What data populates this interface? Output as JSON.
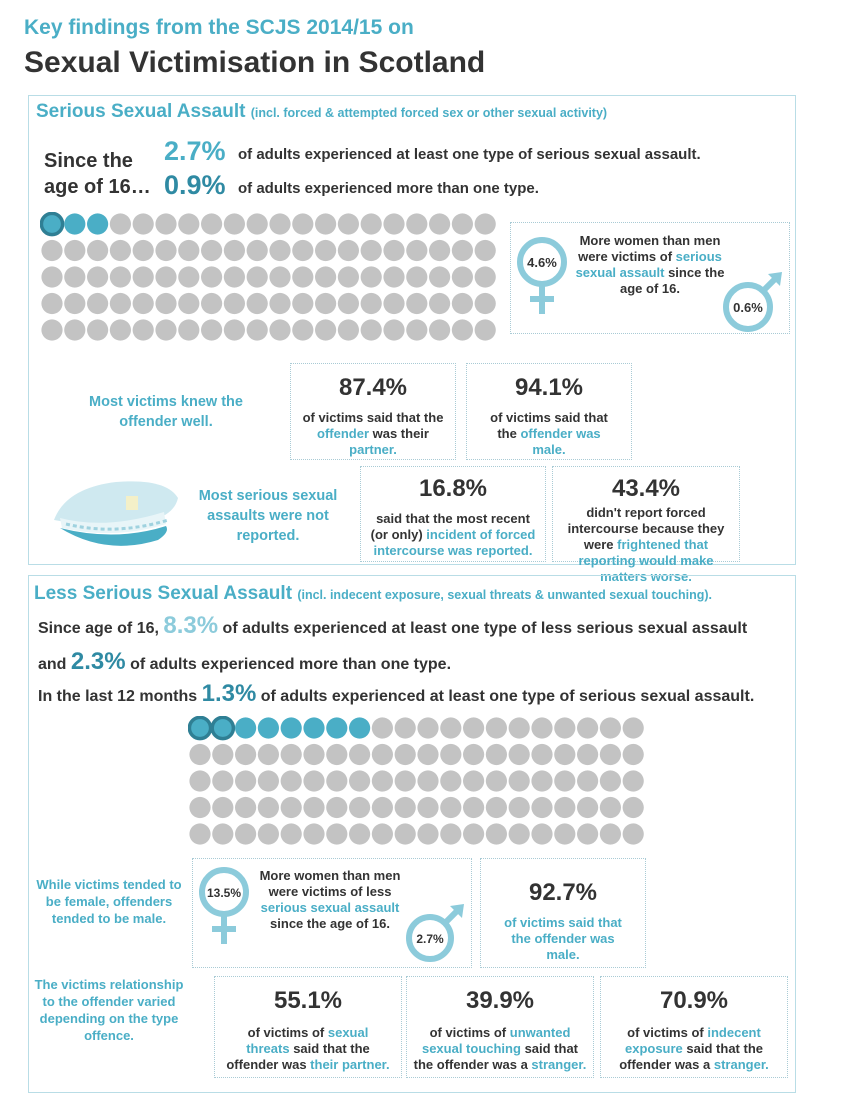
{
  "header": {
    "key_findings": "Key findings from the SCJS 2014/15 on",
    "title": "Sexual Victimisation in Scotland"
  },
  "serious": {
    "title": "Serious Sexual Assault",
    "title_note": "(incl. forced & attempted forced sex or other sexual activity)",
    "since_line1": "Since the",
    "since_line2": "age of 16…",
    "pct1": "2.7%",
    "pct1_text": "of adults experienced at least one type of serious sexual assault.",
    "pct2": "0.9%",
    "pct2_text": "of adults experienced more than one type.",
    "waffle": {
      "total": 100,
      "highlighted_dark": 1,
      "highlighted": 3
    },
    "gender_text_1": "More  women than men were victims of",
    "gender_text_hl": "serious sexual assault",
    "gender_text_2": "since the age of 16.",
    "female_pct": "4.6%",
    "male_pct": "0.6%",
    "knew_offender": "Most victims knew the offender well.",
    "card1_big": "87.4%",
    "card1_a": "of victims said that the",
    "card1_hl": "offender",
    "card1_b": "was their",
    "card1_hl2": "partner.",
    "card2_big": "94.1%",
    "card2_a": "of victims said that the",
    "card2_hl": "offender was male.",
    "not_reported": "Most serious sexual assaults were not reported.",
    "card3_big": "16.8%",
    "card3_a": "said that the most recent (or only)",
    "card3_hl": "incident of forced intercourse was reported.",
    "card4_big": "43.4%",
    "card4_a": "didn't report forced intercourse  because  they were",
    "card4_hl": "frightened that reporting would make matters worse."
  },
  "less": {
    "title": "Less Serious Sexual Assault",
    "title_note": "(incl. indecent exposure, sexual threats & unwanted sexual touching).",
    "l1_pre": "Since age of 16,",
    "l1_pct": "8.3%",
    "l1_text": "of adults experienced at least one type of less serious sexual assault",
    "l2_pre": "and",
    "l2_pct": "2.3%",
    "l2_text": "of adults experienced more than one type.",
    "l3_pre": "In the last 12 months",
    "l3_pct": "1.3%",
    "l3_text": "of adults experienced at least one type of serious sexual assault.",
    "waffle": {
      "total": 100,
      "highlighted_dark": 2,
      "highlighted": 8
    },
    "side1": "While victims tended to be female, offenders tended to be male.",
    "gender_text_1": "More  women than men were victims of less",
    "gender_text_hl": "serious sexual assault",
    "gender_text_2": "since the age of 16.",
    "female_pct": "13.5%",
    "male_pct": "2.7%",
    "card_male_big": "92.7%",
    "card_male_txt": "of victims said that the offender was male.",
    "side2": "The victims relationship to the offender varied depending on the type offence.",
    "c1_big": "55.1%",
    "c1_a": "of victims  of",
    "c1_hl": "sexual threats",
    "c1_b": "said that the offender was",
    "c1_hl2": "their partner.",
    "c2_big": "39.9%",
    "c2_a": "of victims  of",
    "c2_hl": "unwanted sexual touching",
    "c2_b": "said that the offender was a",
    "c2_hl2": "stranger.",
    "c3_big": "70.9%",
    "c3_a": "of victims  of",
    "c3_hl": "indecent exposure",
    "c3_b": "said that the offender was a",
    "c3_hl2": "stranger."
  },
  "colors": {
    "accent": "#4aaec6",
    "dot_grey": "#c3c3c3",
    "dot_dark": "#2f7f94",
    "border": "#b9dde6"
  }
}
